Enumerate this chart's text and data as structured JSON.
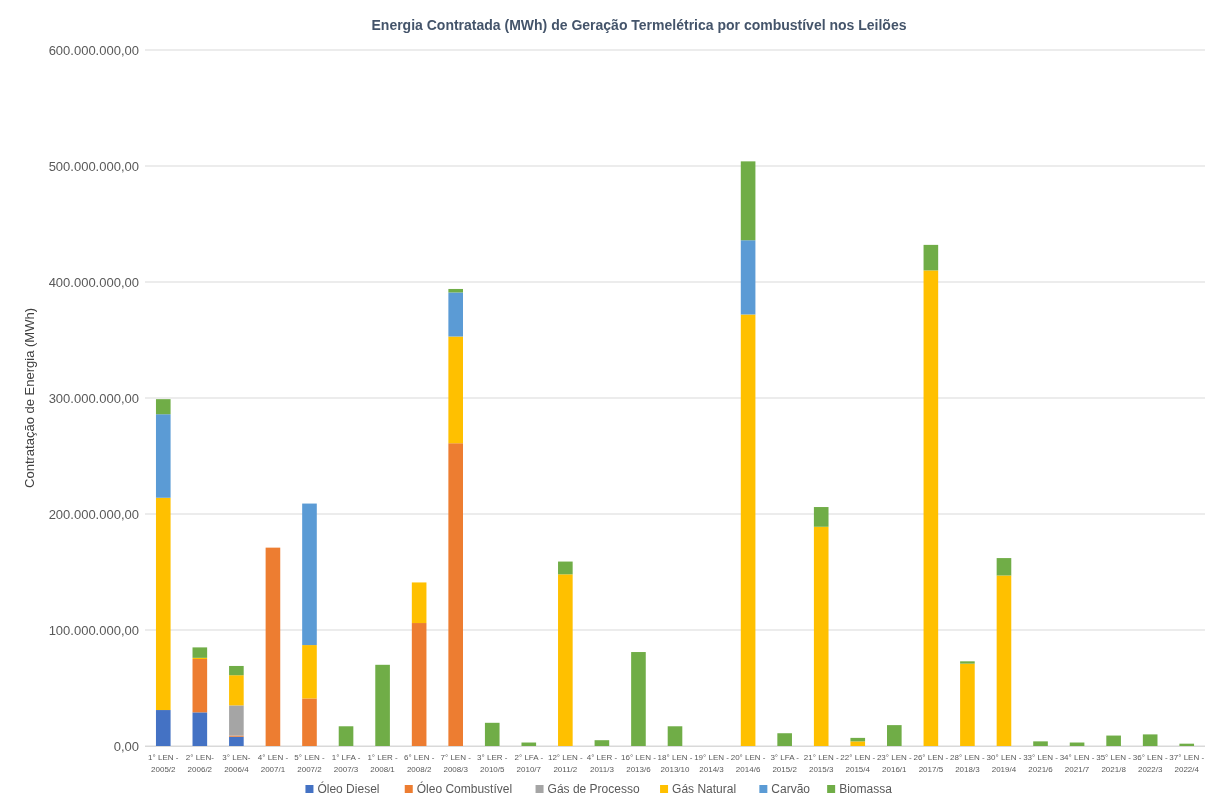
{
  "chart_data": {
    "type": "bar",
    "stacked": true,
    "title": "Energia Contratada (MWh) de Geração Termelétrica por combustível nos Leilões",
    "ylabel": "Contratação de Energia (MWh)",
    "categories": [
      "1° LEN - 2005/2",
      "2° LEN-2006/2",
      "3° LEN-2006/4",
      "4° LEN - 2007/1",
      "5° LEN - 2007/2",
      "1° LFA - 2007/3",
      "1° LER - 2008/1",
      "6° LEN - 2008/2",
      "7° LEN - 2008/3",
      "3° LER - 2010/5",
      "2° LFA - 2010/7",
      "12° LEN - 2011/2",
      "4° LER - 2011/3",
      "16° LEN - 2013/6",
      "18° LEN - 2013/10",
      "19° LEN - 2014/3",
      "20° LEN - 2014/6",
      "3° LFA - 2015/2",
      "21° LEN - 2015/3",
      "22° LEN - 2015/4",
      "23° LEN - 2016/1",
      "26° LEN - 2017/5",
      "28° LEN - 2018/3",
      "30° LEN - 2019/4",
      "33° LEN - 2021/6",
      "34° LEN - 2021/7",
      "35° LEN - 2021/8",
      "36° LEN - 2022/3",
      "37° LEN - 2022/4"
    ],
    "series": [
      {
        "name": "Óleo Diesel",
        "color": "#4472c4",
        "values": [
          31000000,
          29000000,
          8000000,
          null,
          null,
          null,
          null,
          null,
          null,
          null,
          null,
          null,
          null,
          null,
          null,
          null,
          null,
          null,
          null,
          null,
          null,
          null,
          null,
          null,
          null,
          null,
          null,
          null,
          null
        ]
      },
      {
        "name": "Óleo Combustível",
        "color": "#ed7d31",
        "values": [
          null,
          46000000,
          1000000,
          171000000,
          41000000,
          null,
          null,
          106000000,
          261000000,
          null,
          null,
          null,
          null,
          null,
          null,
          null,
          null,
          null,
          null,
          null,
          null,
          null,
          null,
          null,
          null,
          null,
          null,
          null,
          null
        ]
      },
      {
        "name": "Gás de Processo",
        "color": "#a5a5a5",
        "values": [
          null,
          null,
          26000000,
          null,
          null,
          null,
          null,
          null,
          null,
          null,
          null,
          null,
          null,
          null,
          null,
          null,
          null,
          null,
          null,
          null,
          null,
          null,
          null,
          null,
          null,
          null,
          null,
          null,
          null
        ]
      },
      {
        "name": "Gás Natural",
        "color": "#ffc000",
        "values": [
          183000000,
          1000000,
          26000000,
          null,
          46000000,
          null,
          null,
          35000000,
          92000000,
          null,
          null,
          148000000,
          null,
          null,
          null,
          null,
          372000000,
          null,
          189000000,
          4000000,
          null,
          410000000,
          71000000,
          147000000,
          null,
          null,
          null,
          null,
          null
        ]
      },
      {
        "name": "Carvão",
        "color": "#5b9bd5",
        "values": [
          72000000,
          null,
          null,
          null,
          122000000,
          null,
          null,
          null,
          38000000,
          null,
          null,
          null,
          null,
          null,
          null,
          null,
          64000000,
          null,
          null,
          null,
          null,
          null,
          null,
          null,
          null,
          null,
          null,
          null,
          null
        ]
      },
      {
        "name": "Biomassa",
        "color": "#70ad47",
        "values": [
          13000000,
          9000000,
          8000000,
          null,
          null,
          17000000,
          70000000,
          null,
          3000000,
          20000000,
          3000000,
          11000000,
          5000000,
          81000000,
          17000000,
          null,
          68000000,
          11000000,
          17000000,
          3000000,
          18000000,
          22000000,
          2000000,
          15000000,
          4000000,
          3000000,
          9000000,
          10000000,
          2000000
        ]
      }
    ],
    "ylim": [
      0,
      600000000
    ],
    "yticks": [
      {
        "value": 0,
        "label": "0,00"
      },
      {
        "value": 100000000,
        "label": "100.000.000,00"
      },
      {
        "value": 200000000,
        "label": "200.000.000,00"
      },
      {
        "value": 300000000,
        "label": "300.000.000,00"
      },
      {
        "value": 400000000,
        "label": "400.000.000,00"
      },
      {
        "value": 500000000,
        "label": "500.000.000,00"
      },
      {
        "value": 600000000,
        "label": "600.000.000,00"
      }
    ],
    "grid": "y",
    "legend": "bottom"
  }
}
